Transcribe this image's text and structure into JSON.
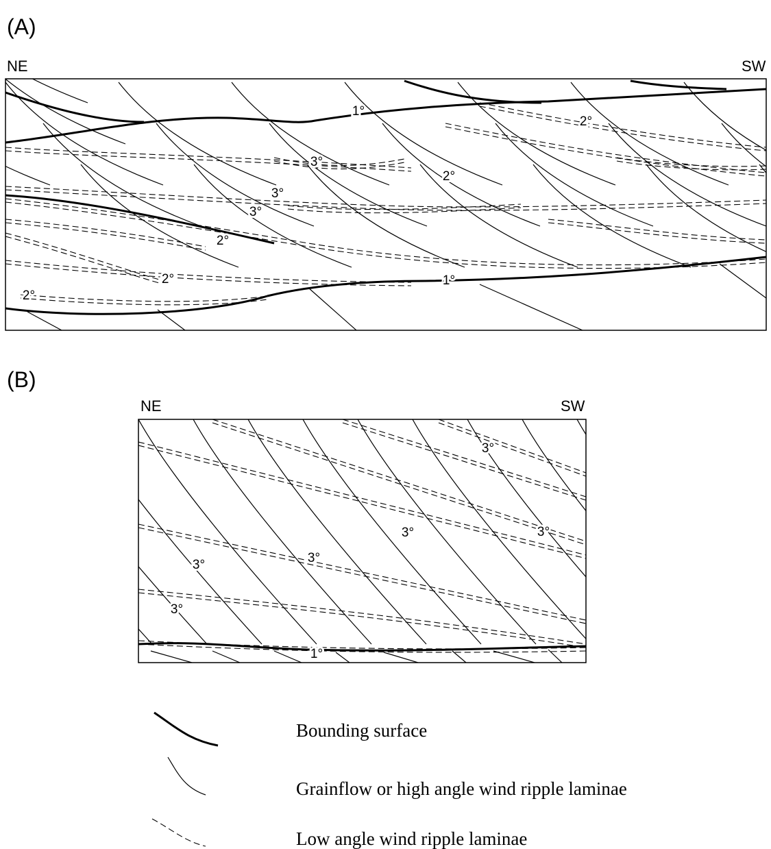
{
  "panels": [
    {
      "label": "(A)",
      "left": "NE",
      "right": "SW",
      "annotations": [
        "1°",
        "2°",
        "3°",
        "2°",
        "3°",
        "3°",
        "2°",
        "2°",
        "1°",
        "2°"
      ]
    },
    {
      "label": "(B)",
      "left": "NE",
      "right": "SW",
      "annotations": [
        "3°",
        "3°",
        "3°",
        "3°",
        "3°",
        "3°",
        "1°"
      ]
    }
  ],
  "legend": [
    {
      "label": "Bounding surface"
    },
    {
      "label": "Grainflow or high angle wind ripple laminae"
    },
    {
      "label": "Low angle wind ripple laminae"
    }
  ]
}
